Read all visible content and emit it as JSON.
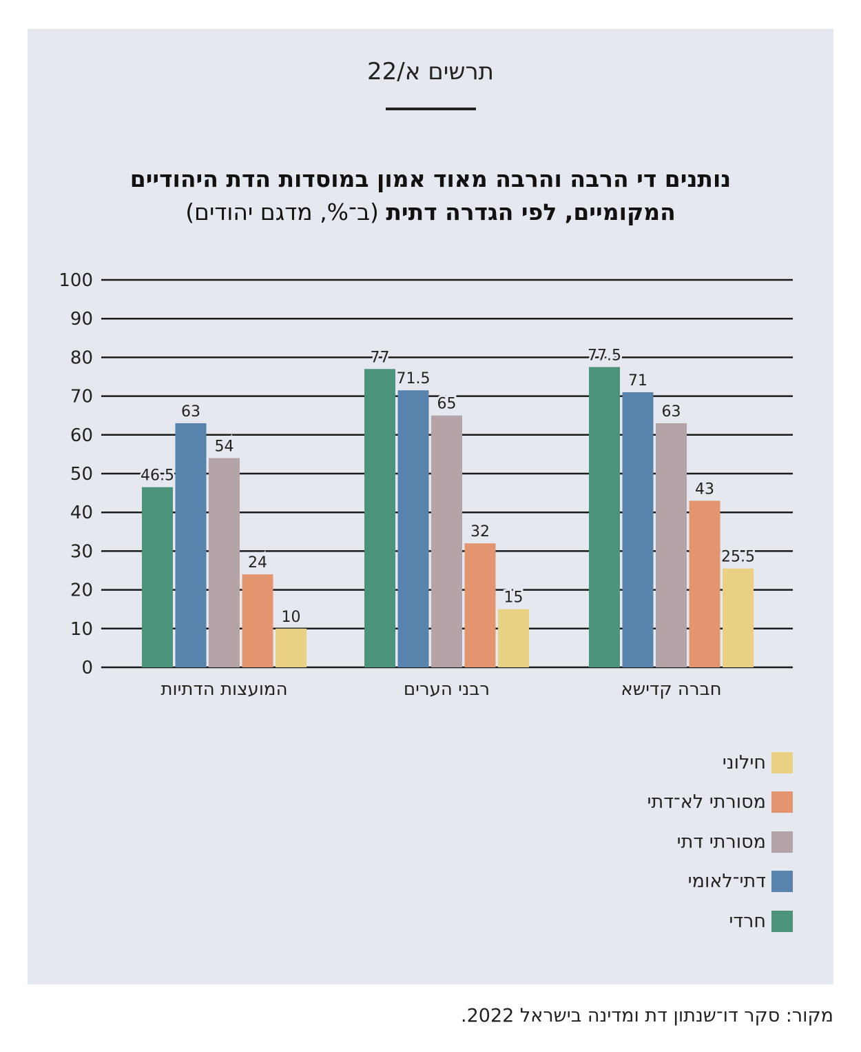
{
  "figure_label": "תרשים א/22",
  "title_bold_line1": "נותנים די הרבה והרבה מאוד אמון במוסדות הדת היהודיים",
  "title_bold_line2": "המקומיים, לפי הגדרה דתית",
  "title_normal_line2": " (ב־%, מדגם יהודים)",
  "source": "מקור: סקר דו־שנתון דת ומדינה בישראל 2022.",
  "chart_data": {
    "type": "bar",
    "title": "נותנים די הרבה והרבה מאוד אמון במוסדות הדת היהודיים המקומיים, לפי הגדרה דתית (ב־%, מדגם יהודים)",
    "xlabel": "",
    "ylabel": "",
    "ylim": [
      0,
      100
    ],
    "yticks": [
      0,
      10,
      20,
      30,
      40,
      50,
      60,
      70,
      80,
      90,
      100
    ],
    "grid": true,
    "legend_position": "bottom-right",
    "categories": [
      "המועצות הדתיות",
      "רבני הערים",
      "חברה קדישא"
    ],
    "series": [
      {
        "name": "חרדי",
        "color": "#4c937b",
        "values": [
          46.5,
          77,
          77.5
        ]
      },
      {
        "name": "דתי־לאומי",
        "color": "#5883ad",
        "values": [
          63,
          71.5,
          71
        ]
      },
      {
        "name": "מסורתי דתי",
        "color": "#b4a4a8",
        "values": [
          54,
          65,
          63
        ]
      },
      {
        "name": "מסורתי לא־דתי",
        "color": "#e3956f",
        "values": [
          24,
          32,
          43
        ]
      },
      {
        "name": "חילוני",
        "color": "#e9d082",
        "values": [
          10,
          15,
          25.5
        ]
      }
    ]
  },
  "legend_order": [
    4,
    3,
    2,
    1,
    0
  ]
}
